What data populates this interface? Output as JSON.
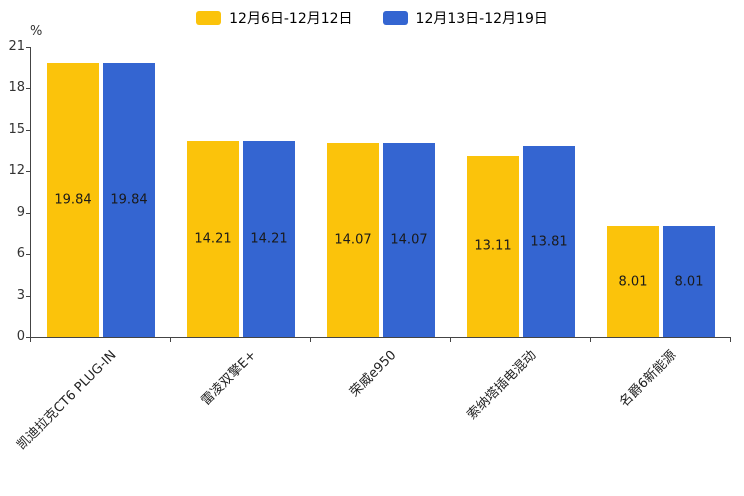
{
  "chart_data": {
    "type": "bar",
    "title": "",
    "unit": "%",
    "categories": [
      "凯迪拉克CT6 PLUG-IN",
      "雷凌双擎E+",
      "荣威e950",
      "索纳塔插电混动",
      "名爵6新能源"
    ],
    "series": [
      {
        "name": "12月6日-12月12日",
        "color": "#FBC30B",
        "values": [
          19.84,
          14.21,
          14.07,
          13.11,
          8.01
        ]
      },
      {
        "name": "12月13日-12月19日",
        "color": "#3465D1",
        "values": [
          19.84,
          14.21,
          14.07,
          13.81,
          8.01
        ]
      }
    ],
    "ylim": [
      0,
      21
    ],
    "yticks": [
      0,
      3,
      6,
      9,
      12,
      15,
      18,
      21
    ],
    "legend_position": "top",
    "grid": false,
    "value_label_decimals": 2
  }
}
